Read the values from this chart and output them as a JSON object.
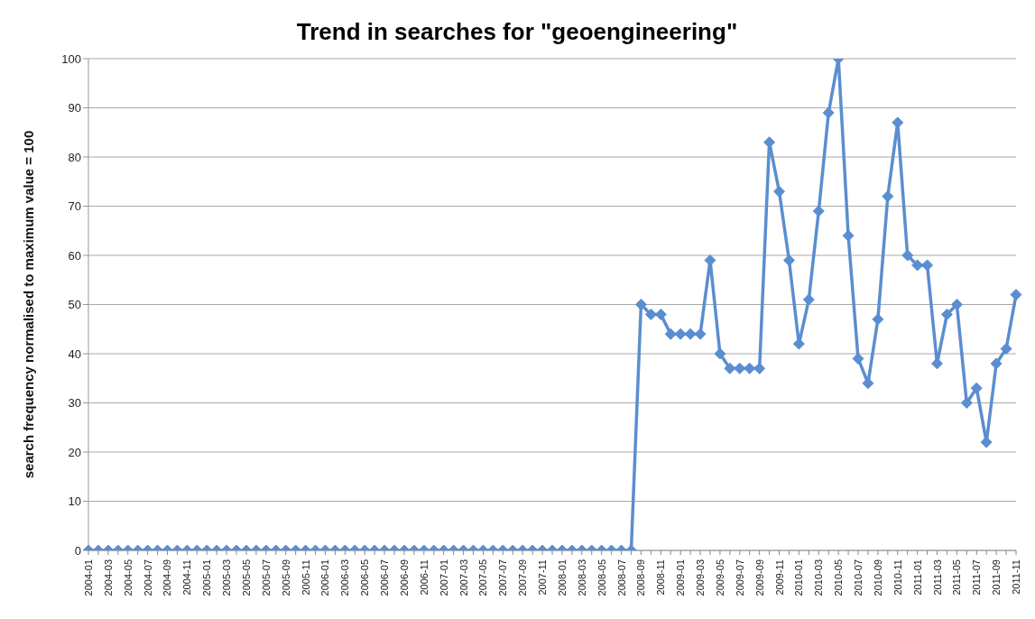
{
  "chart_data": {
    "type": "line",
    "title": "Trend in searches for \"geoengineering\"",
    "ylabel": "search frequency normalised to maximum value = 100",
    "categories": [
      "2004-01",
      null,
      "2004-03",
      null,
      "2004-05",
      null,
      "2004-07",
      null,
      "2004-09",
      null,
      "2004-11",
      null,
      "2005-01",
      null,
      "2005-03",
      null,
      "2005-05",
      null,
      "2005-07",
      null,
      "2005-09",
      null,
      "2005-11",
      null,
      "2006-01",
      null,
      "2006-03",
      null,
      "2006-05",
      null,
      "2006-07",
      null,
      "2006-09",
      null,
      "2006-11",
      null,
      "2007-01",
      null,
      "2007-03",
      null,
      "2007-05",
      null,
      "2007-07",
      null,
      "2007-09",
      null,
      "2007-11",
      null,
      "2008-01",
      null,
      "2008-03",
      null,
      "2008-05",
      null,
      "2008-07",
      null,
      "2008-09",
      null,
      "2008-11",
      null,
      "2009-01",
      null,
      "2009-03",
      null,
      "2009-05",
      null,
      "2009-07",
      null,
      "2009-09",
      null,
      "2009-11",
      null,
      "2010-01",
      null,
      "2010-03",
      null,
      "2010-05",
      null,
      "2010-07",
      null,
      "2010-09",
      null,
      "2010-11",
      null,
      "2011-01",
      null,
      "2011-03",
      null,
      "2011-05",
      null,
      "2011-07",
      null,
      "2011-09",
      null,
      "2011-11"
    ],
    "values": [
      0,
      0,
      0,
      0,
      0,
      0,
      0,
      0,
      0,
      0,
      0,
      0,
      0,
      0,
      0,
      0,
      0,
      0,
      0,
      0,
      0,
      0,
      0,
      0,
      0,
      0,
      0,
      0,
      0,
      0,
      0,
      0,
      0,
      0,
      0,
      0,
      0,
      0,
      0,
      0,
      0,
      0,
      0,
      0,
      0,
      0,
      0,
      0,
      0,
      0,
      0,
      0,
      0,
      0,
      0,
      0,
      50,
      48,
      48,
      44,
      44,
      44,
      44,
      59,
      40,
      37,
      37,
      37,
      37,
      83,
      73,
      59,
      42,
      51,
      69,
      89,
      100,
      64,
      39,
      34,
      47,
      72,
      87,
      60,
      58,
      58,
      38,
      48,
      50,
      30,
      33,
      22,
      38,
      41,
      52
    ],
    "color": "#5a8ed0",
    "ylim": [
      0,
      100
    ],
    "yticks": [
      0,
      10,
      20,
      30,
      40,
      50,
      60,
      70,
      80,
      90,
      100
    ],
    "grid": "y",
    "marker": "diamond",
    "line_style": "solid"
  }
}
